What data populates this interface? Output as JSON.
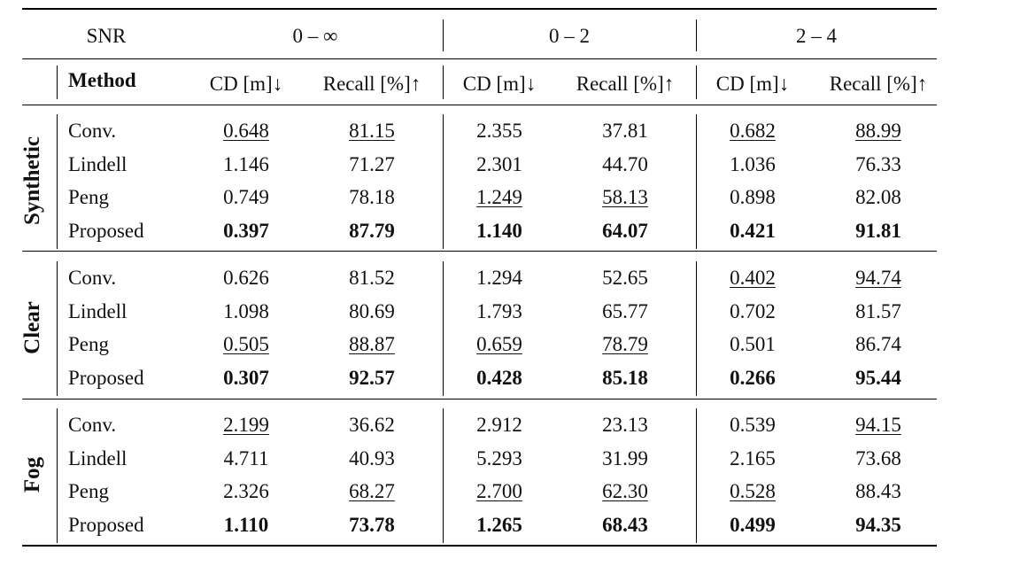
{
  "header": {
    "snr_label": "SNR",
    "snr_ranges": [
      "0 – ∞",
      "0 – 2",
      "2 – 4"
    ],
    "method_label": "Method",
    "cd_label": "CD [m]↓",
    "recall_label": "Recall [%]↑"
  },
  "groups": [
    {
      "name": "Synthetic",
      "rows": [
        {
          "method": "Conv.",
          "values": [
            "0.648",
            "81.15",
            "2.355",
            "37.81",
            "0.682",
            "88.99"
          ],
          "underline": [
            true,
            true,
            false,
            false,
            true,
            true
          ],
          "bold": [
            false,
            false,
            false,
            false,
            false,
            false
          ]
        },
        {
          "method": "Lindell",
          "values": [
            "1.146",
            "71.27",
            "2.301",
            "44.70",
            "1.036",
            "76.33"
          ],
          "underline": [
            false,
            false,
            false,
            false,
            false,
            false
          ],
          "bold": [
            false,
            false,
            false,
            false,
            false,
            false
          ]
        },
        {
          "method": "Peng",
          "values": [
            "0.749",
            "78.18",
            "1.249",
            "58.13",
            "0.898",
            "82.08"
          ],
          "underline": [
            false,
            false,
            true,
            true,
            false,
            false
          ],
          "bold": [
            false,
            false,
            false,
            false,
            false,
            false
          ]
        },
        {
          "method": "Proposed",
          "values": [
            "0.397",
            "87.79",
            "1.140",
            "64.07",
            "0.421",
            "91.81"
          ],
          "underline": [
            false,
            false,
            false,
            false,
            false,
            false
          ],
          "bold": [
            true,
            true,
            true,
            true,
            true,
            true
          ]
        }
      ]
    },
    {
      "name": "Clear",
      "rows": [
        {
          "method": "Conv.",
          "values": [
            "0.626",
            "81.52",
            "1.294",
            "52.65",
            "0.402",
            "94.74"
          ],
          "underline": [
            false,
            false,
            false,
            false,
            true,
            true
          ],
          "bold": [
            false,
            false,
            false,
            false,
            false,
            false
          ]
        },
        {
          "method": "Lindell",
          "values": [
            "1.098",
            "80.69",
            "1.793",
            "65.77",
            "0.702",
            "81.57"
          ],
          "underline": [
            false,
            false,
            false,
            false,
            false,
            false
          ],
          "bold": [
            false,
            false,
            false,
            false,
            false,
            false
          ]
        },
        {
          "method": "Peng",
          "values": [
            "0.505",
            "88.87",
            "0.659",
            "78.79",
            "0.501",
            "86.74"
          ],
          "underline": [
            true,
            true,
            true,
            true,
            false,
            false
          ],
          "bold": [
            false,
            false,
            false,
            false,
            false,
            false
          ]
        },
        {
          "method": "Proposed",
          "values": [
            "0.307",
            "92.57",
            "0.428",
            "85.18",
            "0.266",
            "95.44"
          ],
          "underline": [
            false,
            false,
            false,
            false,
            false,
            false
          ],
          "bold": [
            true,
            true,
            true,
            true,
            true,
            true
          ]
        }
      ]
    },
    {
      "name": "Fog",
      "rows": [
        {
          "method": "Conv.",
          "values": [
            "2.199",
            "36.62",
            "2.912",
            "23.13",
            "0.539",
            "94.15"
          ],
          "underline": [
            true,
            false,
            false,
            false,
            false,
            true
          ],
          "bold": [
            false,
            false,
            false,
            false,
            false,
            false
          ]
        },
        {
          "method": "Lindell",
          "values": [
            "4.711",
            "40.93",
            "5.293",
            "31.99",
            "2.165",
            "73.68"
          ],
          "underline": [
            false,
            false,
            false,
            false,
            false,
            false
          ],
          "bold": [
            false,
            false,
            false,
            false,
            false,
            false
          ]
        },
        {
          "method": "Peng",
          "values": [
            "2.326",
            "68.27",
            "2.700",
            "62.30",
            "0.528",
            "88.43"
          ],
          "underline": [
            false,
            true,
            true,
            true,
            true,
            false
          ],
          "bold": [
            false,
            false,
            false,
            false,
            false,
            false
          ]
        },
        {
          "method": "Proposed",
          "values": [
            "1.110",
            "73.78",
            "1.265",
            "68.43",
            "0.499",
            "94.35"
          ],
          "underline": [
            false,
            false,
            false,
            false,
            false,
            false
          ],
          "bold": [
            true,
            true,
            true,
            true,
            true,
            true
          ]
        }
      ]
    }
  ]
}
